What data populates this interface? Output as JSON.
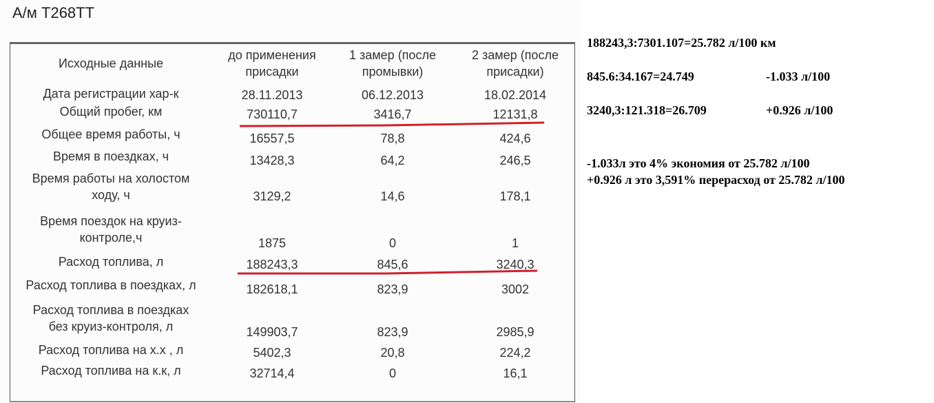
{
  "header": {
    "title": "А/м Т268ТТ"
  },
  "table": {
    "columns": [
      "Исходные данные",
      "до применения\nприсадки",
      "1 замер (после\nпромывки)",
      "2 замер (после\nприсадки)"
    ],
    "rows": [
      [
        "Дата регистрации хар-к",
        "28.11.2013",
        "06.12.2013",
        "18.02.2014"
      ],
      [
        "Общий пробег, км",
        "730110,7",
        "3416,7",
        "12131,8"
      ],
      [
        "Общее время работы, ч",
        "16557,5",
        "78,8",
        "424,6"
      ],
      [
        "Время в поездках, ч",
        "13428,3",
        "64,2",
        "246,5"
      ],
      [
        "Время работы на холостом\nходу, ч",
        "3129,2",
        "14,6",
        "178,1"
      ],
      [
        "Время поездок на круиз-\nконтроле,ч",
        "1875",
        "0",
        "1"
      ],
      [
        "Расход топлива, л",
        "188243,3",
        "845,6",
        "3240,3"
      ],
      [
        "Расход топлива в поездках, л",
        "182618,1",
        "823,9",
        "3002"
      ],
      [
        "Расход топлива в поездках\nбез круиз-контроля, л",
        "149903,7",
        "823,9",
        "2985,9"
      ],
      [
        "Расход топлива на х.х , л",
        "5402,3",
        "20,8",
        "224,2"
      ],
      [
        "Расход топлива на к.к, л",
        "32714,4",
        "0",
        "16,1"
      ]
    ]
  },
  "notes": [
    [
      "188243,3:7301.107=25.782 л/100 км"
    ],
    [
      "845.6:34.167=24.749",
      "-1.033 л/100"
    ],
    [
      "3240,3:121.318=26.709",
      "+0.926 л/100"
    ],
    [
      "-1.033л это 4% экономия от 25.782 л/100"
    ],
    [
      "+0.926 л это 3,591% перерасход от 25.782 л/100"
    ]
  ]
}
